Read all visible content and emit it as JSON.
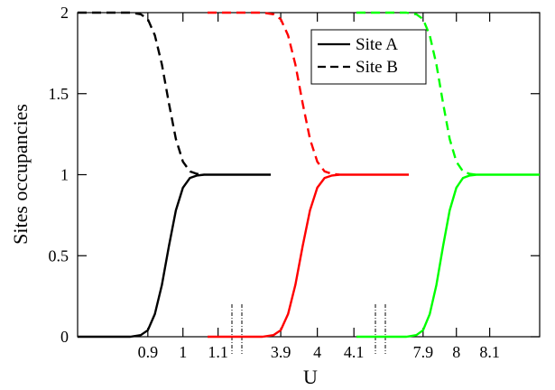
{
  "chart_data": {
    "type": "line",
    "xlabel": "U",
    "ylabel": "Sites occupancies",
    "ylim": [
      0,
      2
    ],
    "y_ticks": [
      "0",
      "0.5",
      "1",
      "1.5",
      "2"
    ],
    "y_tick_values": [
      0,
      0.5,
      1,
      1.5,
      2
    ],
    "broken_x_axis": true,
    "grid": false,
    "legend": {
      "placement": "top-center",
      "entries": [
        {
          "label": "Site A",
          "style": "solid"
        },
        {
          "label": "Site B",
          "style": "dashed"
        }
      ]
    },
    "panels": [
      {
        "color": "#000000",
        "xlim": [
          0.7,
          1.25
        ],
        "x_ticks": [
          "0.9",
          "1",
          "1.1"
        ],
        "x_tick_values": [
          0.9,
          1.0,
          1.1
        ],
        "site_a": {
          "x": [
            0.7,
            0.8,
            0.85,
            0.88,
            0.9,
            0.92,
            0.94,
            0.96,
            0.98,
            1.0,
            1.02,
            1.04,
            1.06,
            1.08,
            1.1,
            1.15,
            1.2,
            1.25
          ],
          "y": [
            0.0,
            0.0,
            0.0,
            0.01,
            0.04,
            0.14,
            0.32,
            0.56,
            0.78,
            0.92,
            0.98,
            0.995,
            1.0,
            1.0,
            1.0,
            1.0,
            1.0,
            1.0
          ]
        },
        "site_b": {
          "x": [
            0.7,
            0.8,
            0.85,
            0.88,
            0.9,
            0.92,
            0.94,
            0.96,
            0.98,
            1.0,
            1.02,
            1.04,
            1.06
          ],
          "y": [
            2.0,
            2.0,
            2.0,
            1.99,
            1.96,
            1.86,
            1.68,
            1.44,
            1.22,
            1.08,
            1.02,
            1.005,
            1.0
          ]
        }
      },
      {
        "color": "#ff0000",
        "xlim": [
          3.7,
          4.25
        ],
        "x_ticks": [
          "3.9",
          "4",
          "4.1"
        ],
        "x_tick_values": [
          3.9,
          4.0,
          4.1
        ],
        "site_a": {
          "x": [
            3.7,
            3.8,
            3.85,
            3.88,
            3.9,
            3.92,
            3.94,
            3.96,
            3.98,
            4.0,
            4.02,
            4.04,
            4.06,
            4.08,
            4.1,
            4.15,
            4.2,
            4.25
          ],
          "y": [
            0.0,
            0.0,
            0.0,
            0.01,
            0.04,
            0.14,
            0.32,
            0.56,
            0.78,
            0.92,
            0.98,
            0.995,
            1.0,
            1.0,
            1.0,
            1.0,
            1.0,
            1.0
          ]
        },
        "site_b": {
          "x": [
            3.7,
            3.8,
            3.85,
            3.88,
            3.9,
            3.92,
            3.94,
            3.96,
            3.98,
            4.0,
            4.02,
            4.04,
            4.06
          ],
          "y": [
            2.0,
            2.0,
            2.0,
            1.99,
            1.96,
            1.86,
            1.68,
            1.44,
            1.22,
            1.08,
            1.02,
            1.005,
            1.0
          ]
        }
      },
      {
        "color": "#00ff00",
        "xlim": [
          7.7,
          8.25
        ],
        "x_ticks": [
          "7.9",
          "8",
          "8.1"
        ],
        "x_tick_values": [
          7.9,
          8.0,
          8.1
        ],
        "site_a": {
          "x": [
            7.7,
            7.8,
            7.85,
            7.88,
            7.9,
            7.92,
            7.94,
            7.96,
            7.98,
            8.0,
            8.02,
            8.04,
            8.06,
            8.08,
            8.1,
            8.15,
            8.2,
            8.25
          ],
          "y": [
            0.0,
            0.0,
            0.0,
            0.01,
            0.04,
            0.14,
            0.32,
            0.56,
            0.78,
            0.92,
            0.98,
            0.995,
            1.0,
            1.0,
            1.0,
            1.0,
            1.0,
            1.0
          ]
        },
        "site_b": {
          "x": [
            7.7,
            7.8,
            7.85,
            7.88,
            7.9,
            7.92,
            7.94,
            7.96,
            7.98,
            8.0,
            8.02,
            8.04,
            8.06
          ],
          "y": [
            2.0,
            2.0,
            2.0,
            1.99,
            1.96,
            1.86,
            1.68,
            1.44,
            1.22,
            1.08,
            1.02,
            1.005,
            1.0
          ]
        }
      }
    ]
  }
}
